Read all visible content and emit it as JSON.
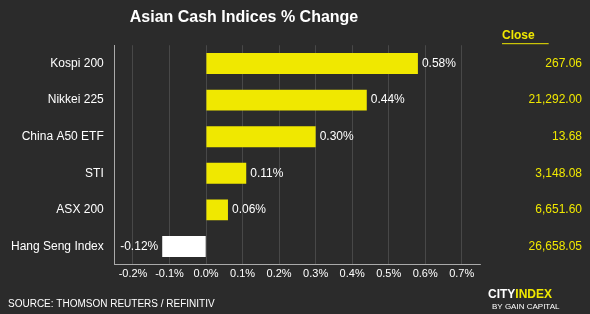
{
  "chart_data": {
    "type": "bar",
    "orientation": "horizontal",
    "title": "Asian Cash Indices % Change",
    "categories": [
      "Kospi 200",
      "Nikkei 225",
      "China A50 ETF",
      "STI",
      "ASX 200",
      "Hang Seng Index"
    ],
    "values": [
      0.58,
      0.44,
      0.3,
      0.11,
      0.06,
      -0.12
    ],
    "value_labels": [
      "0.58%",
      "0.44%",
      "0.30%",
      "0.11%",
      "0.06%",
      "-0.12%"
    ],
    "data_labels": true,
    "colors": [
      "#f0e800",
      "#f0e800",
      "#f0e800",
      "#f0e800",
      "#f0e800",
      "#ffffff"
    ],
    "xlim": [
      -0.25,
      0.75
    ],
    "xticks": [
      {
        "value": -0.2,
        "label": "-0.2%"
      },
      {
        "value": -0.1,
        "label": "-0.1%"
      },
      {
        "value": 0.0,
        "label": "0.0%"
      },
      {
        "value": 0.1,
        "label": "0.1%"
      },
      {
        "value": 0.2,
        "label": "0.2%"
      },
      {
        "value": 0.3,
        "label": "0.3%"
      },
      {
        "value": 0.4,
        "label": "0.4%"
      },
      {
        "value": 0.5,
        "label": "0.5%"
      },
      {
        "value": 0.6,
        "label": "0.6%"
      },
      {
        "value": 0.7,
        "label": "0.7%"
      }
    ],
    "grid": true,
    "close_title": "Close",
    "close_values": [
      267.06,
      21292.0,
      13.68,
      3148.08,
      6651.6,
      26658.05
    ],
    "close_labels": [
      "267.06",
      "21,292.00",
      "13.68",
      "3,148.08",
      "6,651.60",
      "26,658.05"
    ],
    "source": "SOURCE: THOMSON REUTERS / REFINITIV",
    "annotations": [
      "CITY",
      "INDEX",
      "BY GAIN CAPITAL"
    ]
  }
}
